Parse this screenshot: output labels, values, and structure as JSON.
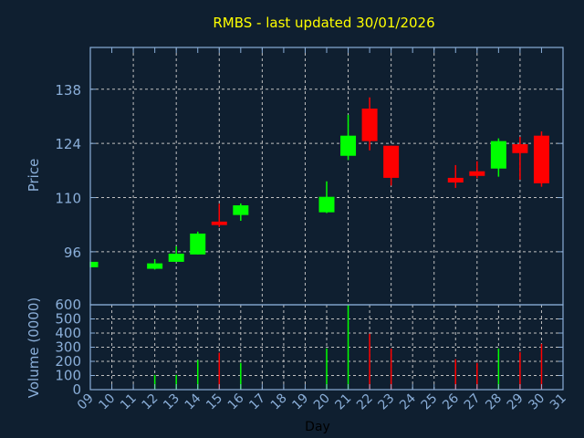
{
  "chart_data": [
    {
      "type": "candlestick",
      "title": "RMBS - last updated 30/01/2026",
      "ylabel": "Price",
      "xlabel": "",
      "yticks": [
        96,
        110,
        124,
        138
      ],
      "ylim": [
        82.3,
        148.8
      ],
      "grid": true,
      "colors": {
        "up": "#00ff00",
        "down": "#ff0000",
        "title": "#ffff00",
        "axis": "#8aaed8",
        "background": "#0f1f30",
        "grid": "#c0c0c0"
      },
      "candles": [
        {
          "day": "09",
          "open": 92.0,
          "high": 93.4,
          "low": 92.0,
          "close": 93.4
        },
        {
          "day": "12",
          "open": 91.6,
          "high": 94.1,
          "low": 91.4,
          "close": 93.0
        },
        {
          "day": "13",
          "open": 93.4,
          "high": 97.4,
          "low": 93.4,
          "close": 95.5
        },
        {
          "day": "14",
          "open": 95.3,
          "high": 101.2,
          "low": 95.3,
          "close": 100.7
        },
        {
          "day": "15",
          "open": 103.8,
          "high": 108.4,
          "low": 102.4,
          "close": 102.9
        },
        {
          "day": "16",
          "open": 105.5,
          "high": 108.5,
          "low": 104.0,
          "close": 108.0
        },
        {
          "day": "20",
          "open": 106.2,
          "high": 114.2,
          "low": 106.0,
          "close": 110.2
        },
        {
          "day": "21",
          "open": 120.8,
          "high": 131.4,
          "low": 119.7,
          "close": 126.0
        },
        {
          "day": "22",
          "open": 133.0,
          "high": 135.9,
          "low": 122.2,
          "close": 124.6
        },
        {
          "day": "23",
          "open": 123.4,
          "high": 123.4,
          "low": 113.1,
          "close": 115.1
        },
        {
          "day": "26",
          "open": 115.1,
          "high": 118.4,
          "low": 112.5,
          "close": 113.9
        },
        {
          "day": "27",
          "open": 116.8,
          "high": 119.4,
          "low": 115.0,
          "close": 115.6
        },
        {
          "day": "28",
          "open": 117.5,
          "high": 125.3,
          "low": 115.4,
          "close": 124.6
        },
        {
          "day": "29",
          "open": 123.8,
          "high": 125.7,
          "low": 114.6,
          "close": 121.5
        },
        {
          "day": "30",
          "open": 126.0,
          "high": 127.1,
          "low": 112.8,
          "close": 113.7
        }
      ]
    },
    {
      "type": "bar",
      "ylabel": "Volume (0000)",
      "xlabel": "Day",
      "ylim": [
        0,
        600
      ],
      "yticks": [
        0,
        100,
        200,
        300,
        400,
        500,
        600
      ],
      "xticks": [
        "09",
        "10",
        "11",
        "12",
        "13",
        "14",
        "15",
        "16",
        "17",
        "18",
        "19",
        "20",
        "21",
        "22",
        "23",
        "24",
        "25",
        "26",
        "27",
        "28",
        "29",
        "30",
        "31"
      ],
      "grid": true,
      "bars": [
        {
          "day": "12",
          "value": 104,
          "direction": "up"
        },
        {
          "day": "13",
          "value": 104,
          "direction": "up"
        },
        {
          "day": "14",
          "value": 209,
          "direction": "up"
        },
        {
          "day": "15",
          "value": 261,
          "direction": "down"
        },
        {
          "day": "16",
          "value": 189,
          "direction": "up"
        },
        {
          "day": "20",
          "value": 291,
          "direction": "up"
        },
        {
          "day": "21",
          "value": 600,
          "direction": "up"
        },
        {
          "day": "22",
          "value": 395,
          "direction": "down"
        },
        {
          "day": "23",
          "value": 291,
          "direction": "down"
        },
        {
          "day": "26",
          "value": 215,
          "direction": "down"
        },
        {
          "day": "27",
          "value": 189,
          "direction": "down"
        },
        {
          "day": "28",
          "value": 291,
          "direction": "up"
        },
        {
          "day": "29",
          "value": 265,
          "direction": "down"
        },
        {
          "day": "30",
          "value": 324,
          "direction": "down"
        }
      ]
    }
  ]
}
